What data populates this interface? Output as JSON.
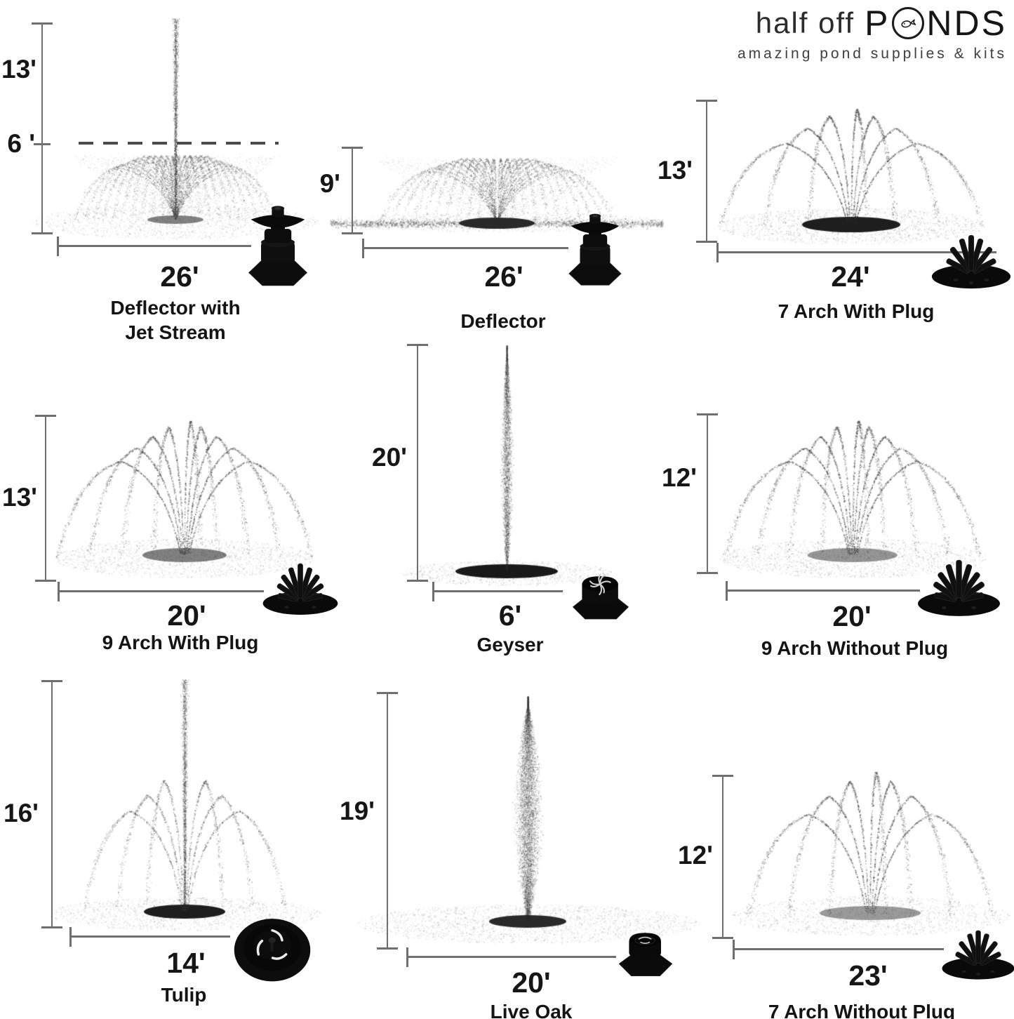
{
  "logo": {
    "brand_thin": "half off",
    "brand_bold_prefix": "P",
    "brand_bold_suffix": "NDS",
    "tagline": "amazing pond supplies & kits"
  },
  "cells": [
    {
      "name_line1": "Deflector with",
      "name_line2": "Jet Stream",
      "height_label": "13'",
      "mid_height_label": "6 '",
      "width_label": "26'",
      "nozzle": "deflector-nozzle"
    },
    {
      "name": "Deflector",
      "height_label": "9'",
      "width_label": "26'",
      "nozzle": "deflector-nozzle"
    },
    {
      "name": "7 Arch With Plug",
      "height_label": "13'",
      "width_label": "24'",
      "nozzle": "7-arch-nozzle"
    },
    {
      "name": "9 Arch With Plug",
      "height_label": "13'",
      "width_label": "20'",
      "nozzle": "9-arch-nozzle"
    },
    {
      "name": "Geyser",
      "height_label": "20'",
      "width_label": "6'",
      "nozzle": "geyser-nozzle"
    },
    {
      "name": "9 Arch Without Plug",
      "height_label": "12'",
      "width_label": "20'",
      "nozzle": "9-arch-nozzle"
    },
    {
      "name": "Tulip",
      "height_label": "16'",
      "width_label": "14'",
      "nozzle": "tulip-nozzle"
    },
    {
      "name": "Live Oak",
      "height_label": "19'",
      "width_label": "20'",
      "nozzle": "live-oak-nozzle"
    },
    {
      "name": "7 Arch Without Plug",
      "height_label": "12'",
      "width_label": "23'",
      "nozzle": "7-arch-nozzle"
    }
  ]
}
